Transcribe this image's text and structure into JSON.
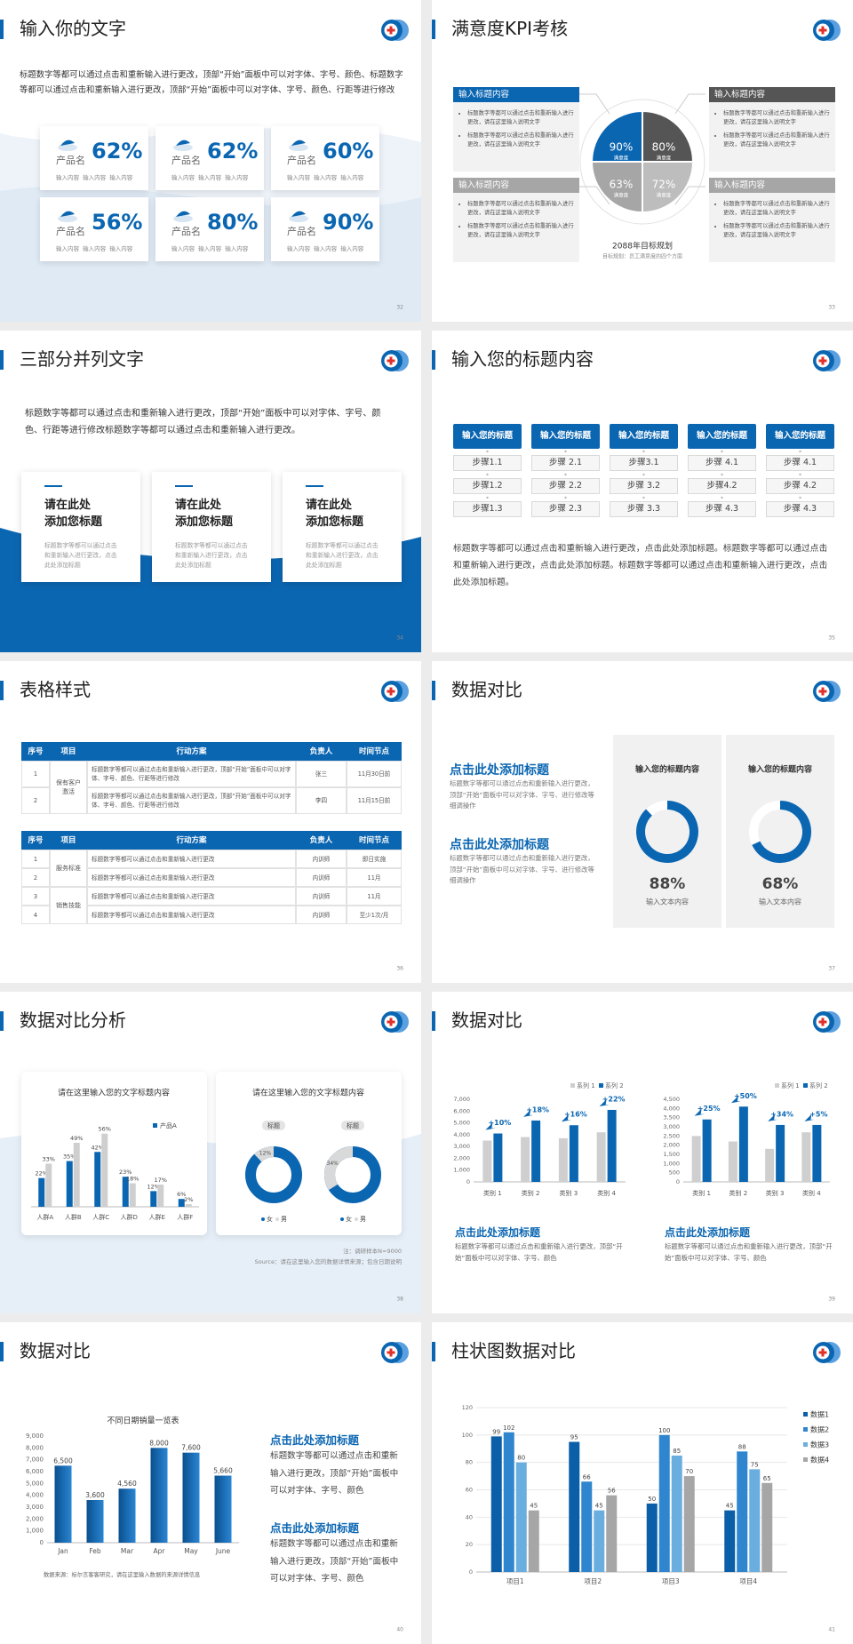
{
  "slides": [
    {
      "title": "输入你的文字",
      "page": "32",
      "text": "标题数字等都可以通过点击和重新输入进行更改，顶部“开始”面板中可以对字体、字号、颜色、标题数字等都可以通过点击和重新输入进行更改，顶部“开始”面板中可以对字体、字号、颜色、行距等进行修改",
      "cards": [
        {
          "name": "产品名",
          "value": "62%",
          "note": "输入内容  输入内容  输入内容"
        },
        {
          "name": "产品名",
          "value": "62%",
          "note": "输入内容  输入内容  输入内容"
        },
        {
          "name": "产品名",
          "value": "60%",
          "note": "输入内容  输入内容  输入内容"
        },
        {
          "name": "产品名",
          "value": "56%",
          "note": "输入内容  输入内容  输入内容"
        },
        {
          "name": "产品名",
          "value": "80%",
          "note": "输入内容  输入内容  输入内容"
        },
        {
          "name": "产品名",
          "value": "90%",
          "note": "输入内容  输入内容  输入内容"
        }
      ]
    },
    {
      "title": "满意度KPI考核",
      "page": "33",
      "boxes": [
        {
          "heading": "输入标题内容",
          "items": [
            "标题数字等都可以通过点击和重新输入进行更改，请在这里输入说明文字",
            "标题数字等都可以通过点击和重新输入进行更改，请在这里输入说明文字"
          ]
        },
        {
          "heading": "输入标题内容",
          "items": [
            "标题数字等都可以通过点击和重新输入进行更改，请在这里输入说明文字",
            "标题数字等都可以通过点击和重新输入进行更改，请在这里输入说明文字"
          ]
        },
        {
          "heading": "输入标题内容",
          "items": [
            "标题数字等都可以通过点击和重新输入进行更改，请在这里输入说明文字",
            "标题数字等都可以通过点击和重新输入进行更改，请在这里输入说明文字"
          ]
        },
        {
          "heading": "输入标题内容",
          "items": [
            "标题数字等都可以通过点击和重新输入进行更改，请在这里输入说明文字",
            "标题数字等都可以通过点击和重新输入进行更改，请在这里输入说明文字"
          ]
        }
      ],
      "quadrants": [
        {
          "value": "90%",
          "label": "满意度"
        },
        {
          "value": "80%",
          "label": "满意度"
        },
        {
          "value": "63%",
          "label": "满意度"
        },
        {
          "value": "72%",
          "label": "满意度"
        }
      ],
      "caption": "2088年目标规划",
      "subcaption": "目标规划：员工满意度的四个方面"
    },
    {
      "title": "三部分并列文字",
      "page": "34",
      "text": "标题数字等都可以通过点击和重新输入进行更改，顶部“开始”面板中可以对字体、字号、颜色、行距等进行修改标题数字等都可以通过点击和重新输入进行更改。",
      "cards": [
        {
          "title": [
            "请在此处",
            "添加您标题"
          ],
          "text": "标题数字等都可以通过点击和重新输入进行更改，点击此处添加标题"
        },
        {
          "title": [
            "请在此处",
            "添加您标题"
          ],
          "text": "标题数字等都可以通过点击和重新输入进行更改，点击此处添加标题"
        },
        {
          "title": [
            "请在此处",
            "添加您标题"
          ],
          "text": "标题数字等都可以通过点击和重新输入进行更改，点击此处添加标题"
        }
      ]
    },
    {
      "title": "输入您的标题内容",
      "page": "35",
      "columns": [
        {
          "heading": "输入您的标题",
          "steps": [
            "步骤1.1",
            "步骤1.2",
            "步骤1.3"
          ]
        },
        {
          "heading": "输入您的标题",
          "steps": [
            "步骤 2.1",
            "步骤 2.2",
            "步骤 2.3"
          ]
        },
        {
          "heading": "输入您的标题",
          "steps": [
            "步骤3.1",
            "步骤 3.2",
            "步骤 3.3"
          ]
        },
        {
          "heading": "输入您的标题",
          "steps": [
            "步骤 4.1",
            "步骤4.2",
            "步骤 4.3"
          ]
        },
        {
          "heading": "输入您的标题",
          "steps": [
            "步骤 4.1",
            "步骤 4.2",
            "步骤 4.3"
          ]
        }
      ],
      "text": "标题数字等都可以通过点击和重新输入进行更改，点击此处添加标题。标题数字等都可以通过点击和重新输入进行更改，点击此处添加标题。标题数字等都可以通过点击和重新输入进行更改，点击此处添加标题。"
    },
    {
      "title": "表格样式",
      "page": "36",
      "tables": [
        {
          "header": [
            "序号",
            "项目",
            "行动方案",
            "负责人",
            "时间节点"
          ],
          "groups": [
            {
              "label": "保有客户激活",
              "rows": [
                [
                  "1",
                  "标题数字等都可以通过点击和重新输入进行更改，顶部“开始”面板中可以对字体、字号、颜色、行距等进行修改",
                  "张三",
                  "11月30日前"
                ],
                [
                  "2",
                  "标题数字等都可以通过点击和重新输入进行更改，顶部“开始”面板中可以对字体、字号、颜色、行距等进行修改",
                  "李四",
                  "11月15日前"
                ]
              ]
            }
          ]
        },
        {
          "header": [
            "序号",
            "项目",
            "行动方案",
            "负责人",
            "时间节点"
          ],
          "groups": [
            {
              "label": "服务标准",
              "rows": [
                [
                  "1",
                  "标题数字等都可以通过点击和重新输入进行更改",
                  "内训师",
                  "即日实施"
                ],
                [
                  "2",
                  "标题数字等都可以通过点击和重新输入进行更改",
                  "内训师",
                  "11月"
                ]
              ]
            },
            {
              "label": "销售技能",
              "rows": [
                [
                  "3",
                  "标题数字等都可以通过点击和重新输入进行更改",
                  "内训师",
                  "11月"
                ],
                [
                  "4",
                  "标题数字等都可以通过点击和重新输入进行更改",
                  "内训师",
                  "至少1次/月"
                ]
              ]
            }
          ]
        }
      ]
    },
    {
      "title": "数据对比",
      "page": "37",
      "blocks": [
        {
          "heading": "点击此处添加标题",
          "text": "标题数字等都可以通过点击和重新输入进行更改，顶部“开始”面板中可以对字体、字号、进行修改等细调操作"
        },
        {
          "heading": "点击此处添加标题",
          "text": "标题数字等都可以通过点击和重新输入进行更改，顶部“开始”面板中可以对字体、字号、进行修改等细调操作"
        }
      ],
      "chart": {
        "type": "donut",
        "titles": [
          "输入您的标题内容",
          "输入您的标题内容"
        ],
        "values": [
          88,
          68
        ],
        "value_labels": [
          "88%",
          "68%"
        ],
        "captions": [
          "输入文本内容",
          "输入文本内容"
        ],
        "color": "#0b66b2"
      }
    },
    {
      "title": "数据对比分析",
      "page": "38",
      "panel_titles": [
        "请在这里输入您的文字标题内容",
        "请在这里输入您的文字标题内容"
      ],
      "chart": {
        "type": "bar",
        "categories": [
          "人群A",
          "人群B",
          "人群C",
          "人群D",
          "人群E",
          "人群F"
        ],
        "series": [
          {
            "name": "产品A",
            "color": "#0b66b2",
            "values": [
              22,
              35,
              42,
              23,
              12,
              6
            ],
            "value_labels": [
              "22%",
              "35%",
              "42%",
              "23%",
              "12%",
              "6%"
            ]
          },
          {
            "color": "#cfcfcf",
            "values": [
              33,
              49,
              56,
              18,
              17,
              2
            ],
            "value_labels": [
              "33%",
              "49%",
              "56%",
              "18%",
              "17%",
              "2%"
            ]
          }
        ]
      },
      "donuts": {
        "type": "donut",
        "items": [
          {
            "label": "标题",
            "value": 12,
            "value_label": "12%"
          },
          {
            "label": "标题",
            "value": 34,
            "value_label": "34%"
          }
        ],
        "legend": [
          "女",
          "男"
        ],
        "colors": [
          "#0b66b2",
          "#d9d9d9"
        ]
      },
      "notes": [
        "注：调研样本N=9000",
        "Source：请在这里输入您的数据详情来源；包含日期说明"
      ]
    },
    {
      "title": "数据对比",
      "page": "39",
      "charts": [
        {
          "type": "bar",
          "categories": [
            "类别 1",
            "类别 2",
            "类别 3",
            "类别 4"
          ],
          "series": [
            {
              "name": "系列 1",
              "color": "#cfcfcf",
              "values": [
                3500,
                3800,
                3700,
                4200
              ]
            },
            {
              "name": "系列 2",
              "color": "#0b66b2",
              "values": [
                4100,
                5200,
                4800,
                6100
              ]
            }
          ],
          "ylim": [
            0,
            7000
          ],
          "yticks": [
            0,
            {
              "value": 1000,
              "label": "1,000"
            },
            {
              "value": 2000,
              "label": "2,000"
            },
            {
              "value": 3000,
              "label": "3,000"
            },
            {
              "value": 4000,
              "label": "4,000"
            },
            {
              "value": 5000,
              "label": "5,000"
            },
            {
              "value": 6000,
              "label": "6,000"
            },
            {
              "value": 7000,
              "label": "7,000"
            }
          ],
          "annotations": [
            "+10%",
            "+18%",
            "+16%",
            "+22%"
          ]
        },
        {
          "type": "bar",
          "categories": [
            "类别 1",
            "类别 2",
            "类别 3",
            "类别 4"
          ],
          "series": [
            {
              "name": "系列 1",
              "color": "#cfcfcf",
              "values": [
                2500,
                2200,
                1800,
                2700
              ]
            },
            {
              "name": "系列 2",
              "color": "#0b66b2",
              "values": [
                3400,
                4100,
                3100,
                3100
              ]
            }
          ],
          "ylim": [
            0,
            4500
          ],
          "yticks": [
            0,
            500,
            {
              "value": 1000,
              "label": "1,000"
            },
            {
              "value": 1500,
              "label": "1,500"
            },
            {
              "value": 2000,
              "label": "2,000"
            },
            {
              "value": 2500,
              "label": "2,500"
            },
            {
              "value": 3000,
              "label": "3,000"
            },
            {
              "value": 3500,
              "label": "3,500"
            },
            {
              "value": 4000,
              "label": "4,000"
            },
            {
              "value": 4500,
              "label": "4,500"
            }
          ],
          "annotations": [
            "+25%",
            "+50%",
            "+34%",
            "+5%"
          ]
        }
      ],
      "blocks": [
        {
          "heading": "点击此处添加标题",
          "text": "标题数字等都可以通过点击和重新输入进行更改，顶部“开始”面板中可以对字体、字号、颜色"
        },
        {
          "heading": "点击此处添加标题",
          "text": "标题数字等都可以通过点击和重新输入进行更改，顶部“开始”面板中可以对字体、字号、颜色"
        }
      ]
    },
    {
      "title": "数据对比",
      "page": "40",
      "chart": {
        "type": "bar",
        "title": "不同日期销量一览表",
        "categories": [
          "Jan",
          "Feb",
          "Mar",
          "Apr",
          "May",
          "June"
        ],
        "values": [
          6500,
          3600,
          4560,
          8000,
          7600,
          5660
        ],
        "value_labels": [
          "6,500",
          "3,600",
          "4,560",
          "8,000",
          "7,600",
          "5,660"
        ],
        "color": "#0b66b2",
        "ylim": [
          0,
          9000
        ],
        "yticks": [
          0,
          {
            "value": 1000,
            "label": "1,000"
          },
          {
            "value": 2000,
            "label": "2,000"
          },
          {
            "value": 3000,
            "label": "3,000"
          },
          {
            "value": 4000,
            "label": "4,000"
          },
          {
            "value": 5000,
            "label": "5,000"
          },
          {
            "value": 6000,
            "label": "6,000"
          },
          {
            "value": 7000,
            "label": "7,000"
          },
          {
            "value": 8000,
            "label": "8,000"
          },
          {
            "value": 9000,
            "label": "9,000"
          }
        ]
      },
      "source": "数据来源：标尔言客客研究，请在这里输入数据的来源详情信息",
      "blocks": [
        {
          "heading": "点击此处添加标题",
          "text": "标题数字等都可以通过点击和重新输入进行更改，顶部“开始”面板中可以对字体、字号、颜色"
        },
        {
          "heading": "点击此处添加标题",
          "text": "标题数字等都可以通过点击和重新输入进行更改，顶部“开始”面板中可以对字体、字号、颜色"
        }
      ]
    },
    {
      "title": "柱状图数据对比",
      "page": "41",
      "chart": {
        "type": "bar",
        "categories": [
          "项目1",
          "项目2",
          "项目3",
          "项目4"
        ],
        "series": [
          {
            "name": "数据1",
            "color": "#0b5fa8",
            "values": [
              99,
              95,
              50,
              45
            ]
          },
          {
            "name": "数据2",
            "color": "#2f86cf",
            "values": [
              102,
              66,
              100,
              88
            ]
          },
          {
            "name": "数据3",
            "color": "#6aaee0",
            "values": [
              80,
              45,
              85,
              75
            ]
          },
          {
            "name": "数据4",
            "color": "#a6a6a6",
            "values": [
              45,
              56,
              70,
              65
            ]
          }
        ],
        "ylim": [
          0,
          120
        ],
        "yticks": [
          0,
          20,
          40,
          60,
          80,
          100,
          120
        ],
        "grid": true
      }
    }
  ]
}
